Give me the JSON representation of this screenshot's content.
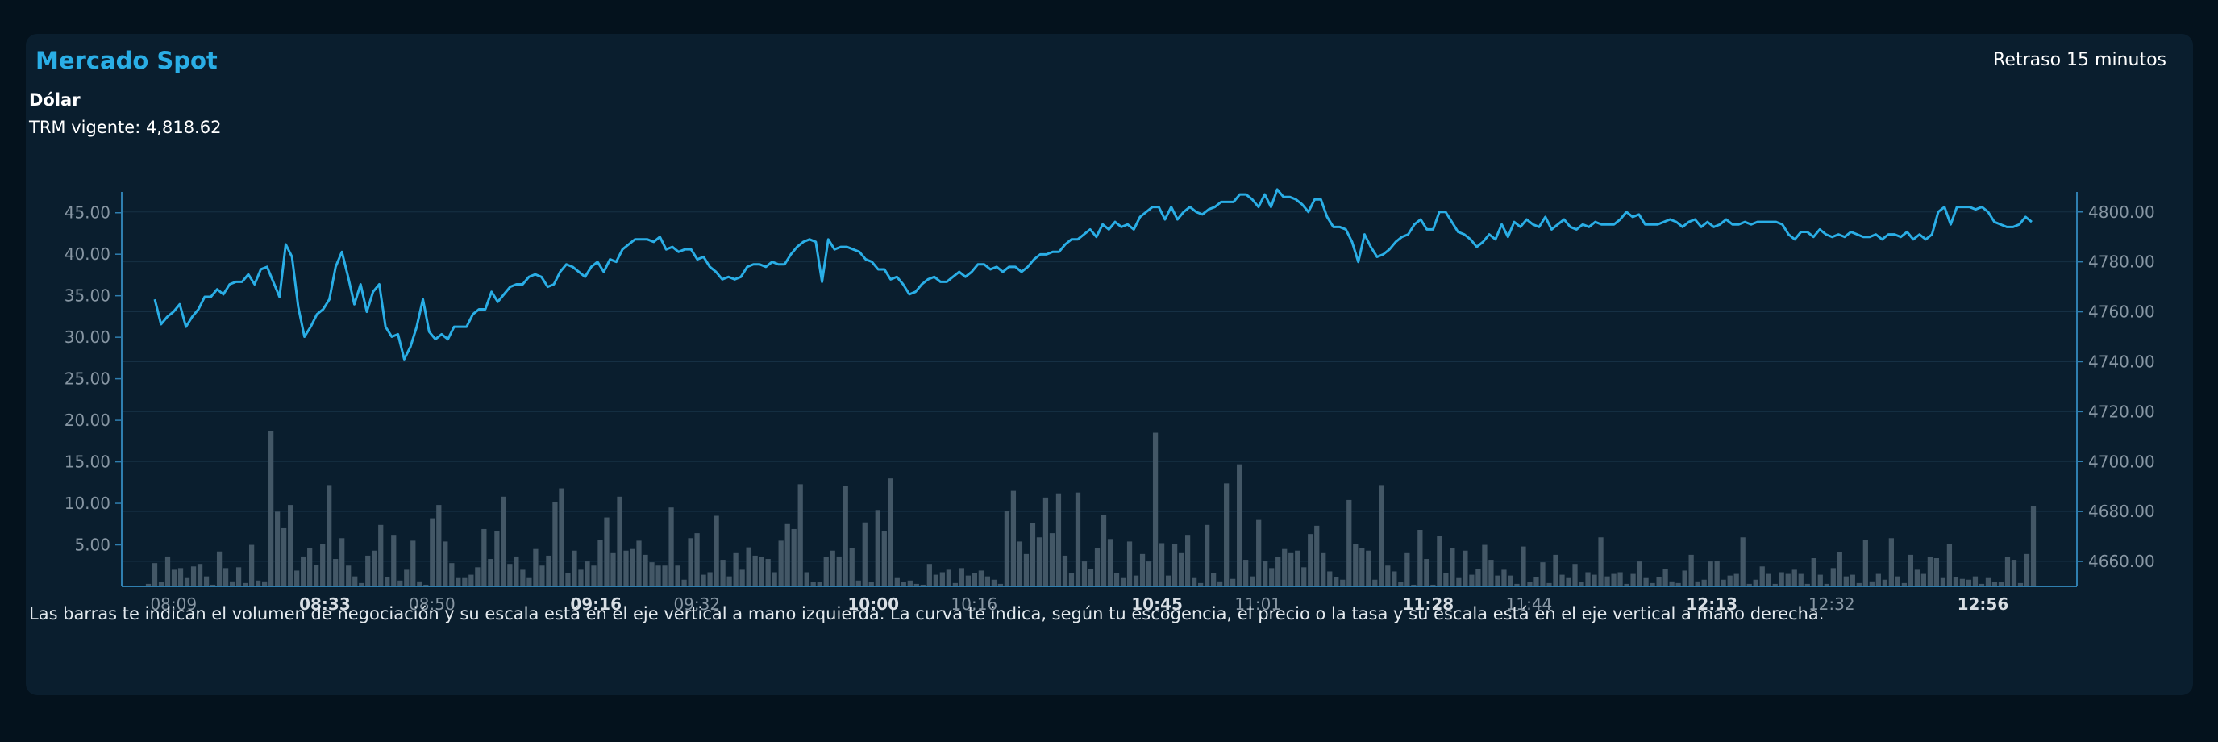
{
  "header": {
    "title": "Mercado Spot",
    "delay": "Retraso 15 minutos",
    "subtitle": "Dólar",
    "trm_label": "TRM vigente: 4,818.62"
  },
  "footer_note": "Las barras te indican el volumen de negociación y su escala está en el eje vertical a mano izquierda. La curva te indica, según tu escogencia, el precio o la tasa y su escala está en el eje vertical a mano derecha.",
  "colors": {
    "line": "#2aaee6",
    "bar": "#435766",
    "axis": "#2f7fb0",
    "grid": "#163044",
    "tick_text": "#8796a3",
    "time_bold": "#d8dee4"
  },
  "chart_data": {
    "type": "bar+line",
    "title": "Mercado Spot",
    "grid": true,
    "volume_axis": {
      "position": "left",
      "range": [
        0,
        47.5
      ],
      "ticks": [
        5,
        10,
        15,
        20,
        25,
        30,
        35,
        40,
        45
      ],
      "tick_labels": [
        "5.00",
        "10.00",
        "15.00",
        "20.00",
        "25.00",
        "30.00",
        "35.00",
        "40.00",
        "45.00"
      ]
    },
    "price_axis": {
      "position": "right",
      "range": [
        4650,
        4808
      ],
      "ticks": [
        4660,
        4680,
        4700,
        4720,
        4740,
        4760,
        4780,
        4800
      ],
      "tick_labels": [
        "4660.00",
        "4680.00",
        "4700.00",
        "4720.00",
        "4740.00",
        "4760.00",
        "4780.00",
        "4800.00"
      ]
    },
    "time_axis": {
      "range_minutes": [
        "08:05",
        "13:04"
      ],
      "ticks": [
        {
          "label": "08:09",
          "bold": false
        },
        {
          "label": "08:33",
          "bold": true
        },
        {
          "label": "08:50",
          "bold": false
        },
        {
          "label": "09:16",
          "bold": true
        },
        {
          "label": "09:32",
          "bold": false
        },
        {
          "label": "10:00",
          "bold": true
        },
        {
          "label": "10:16",
          "bold": false
        },
        {
          "label": "10:45",
          "bold": true
        },
        {
          "label": "11:01",
          "bold": false
        },
        {
          "label": "11:28",
          "bold": true
        },
        {
          "label": "11:44",
          "bold": false
        },
        {
          "label": "12:13",
          "bold": true
        },
        {
          "label": "12:32",
          "bold": false
        },
        {
          "label": "12:56",
          "bold": true
        }
      ]
    },
    "volume_series": {
      "name": "",
      "values": [
        0.3,
        2.8,
        0.5,
        3.6,
        2.0,
        2.2,
        1.0,
        2.4,
        2.7,
        1.2,
        0.2,
        4.2,
        2.2,
        0.6,
        2.3,
        0.4,
        5.0,
        0.7,
        0.6,
        18.7,
        9.0,
        7.0,
        9.8,
        1.9,
        3.6,
        4.6,
        2.6,
        5.1,
        12.2,
        3.3,
        5.8,
        2.5,
        1.2,
        0.4,
        3.7,
        4.3,
        7.4,
        1.1,
        6.2,
        0.7,
        2.0,
        5.5,
        0.6,
        0.2,
        8.2,
        9.8,
        5.4,
        2.8,
        1.0,
        1.0,
        1.4,
        2.3,
        6.9,
        3.3,
        6.7,
        10.8,
        2.7,
        3.6,
        2.0,
        1.0,
        4.5,
        2.5,
        3.7,
        10.2,
        11.8,
        1.6,
        4.3,
        2.0,
        3.0,
        2.5,
        5.6,
        8.3,
        4.0,
        10.8,
        4.3,
        4.5,
        5.5,
        3.8,
        2.9,
        2.5,
        2.5,
        9.5,
        2.5,
        0.8,
        5.8,
        6.4,
        1.4,
        1.7,
        8.5,
        3.2,
        1.2,
        4.0,
        2.0,
        4.7,
        3.7,
        3.5,
        3.3,
        1.7,
        5.5,
        7.5,
        6.9,
        12.3,
        1.7,
        0.5,
        0.5,
        3.5,
        4.3,
        3.6,
        12.1,
        4.6,
        0.7,
        7.7,
        0.5,
        9.2,
        6.7,
        13.0,
        1.0,
        0.5,
        0.7,
        0.3,
        0.2,
        2.7,
        1.4,
        1.7,
        2.0,
        0.4,
        2.2,
        1.3,
        1.6,
        1.9,
        1.2,
        0.8,
        0.3,
        9.1,
        11.5,
        5.4,
        3.9,
        7.6,
        5.9,
        10.7,
        6.4,
        11.2,
        3.7,
        1.6,
        11.3,
        3.0,
        2.1,
        4.6,
        8.6,
        5.7,
        1.6,
        1.0,
        5.4,
        1.3,
        3.9,
        3.0,
        18.5,
        5.2,
        1.3,
        5.1,
        4.0,
        6.2,
        1.0,
        0.4,
        7.4,
        1.6,
        0.6,
        12.4,
        0.9,
        14.7,
        3.2,
        1.2,
        8.0,
        3.1,
        2.2,
        3.5,
        4.5,
        4.0,
        4.3,
        2.3,
        6.3,
        7.3,
        4.0,
        1.8,
        1.1,
        0.8,
        10.4,
        5.1,
        4.6,
        4.3,
        0.8,
        12.2,
        2.5,
        1.8,
        0.5,
        4.0,
        0.2,
        6.8,
        3.3,
        0.2,
        6.1,
        1.6,
        4.6,
        1.0,
        4.3,
        1.4,
        2.1,
        5.0,
        3.2,
        1.3,
        2.0,
        1.3,
        0.3,
        4.8,
        0.5,
        1.1,
        2.9,
        0.4,
        3.8,
        1.4,
        1.0,
        2.7,
        0.5,
        1.7,
        1.4,
        5.9,
        1.2,
        1.5,
        1.7,
        0.3,
        1.5,
        3.0,
        1.0,
        0.4,
        1.1,
        2.1,
        0.6,
        0.4,
        1.9,
        3.8,
        0.6,
        0.8,
        3.0,
        3.1,
        0.8,
        1.3,
        1.5,
        5.9,
        0.3,
        0.8,
        2.4,
        1.5,
        0.3,
        1.7,
        1.5,
        2.0,
        1.5,
        0.3,
        3.4,
        1.4,
        0.3,
        2.2,
        4.1,
        1.2,
        1.4,
        0.4,
        5.6,
        0.6,
        1.5,
        0.8,
        5.8,
        1.2,
        0.4,
        3.8,
        2.0,
        1.5,
        3.5,
        3.4,
        1.0,
        5.1,
        1.1,
        0.9,
        0.8,
        1.2,
        0.3,
        1.0,
        0.5,
        0.5,
        3.5,
        3.2,
        0.4,
        3.9,
        9.7
      ]
    },
    "price_series": {
      "name": "",
      "values": [
        4765,
        4755,
        4758,
        4760,
        4763,
        4754,
        4758,
        4761,
        4766,
        4766,
        4769,
        4767,
        4771,
        4772,
        4772,
        4775,
        4771,
        4777,
        4778,
        4772,
        4766,
        4787,
        4782,
        4762,
        4750,
        4754,
        4759,
        4761,
        4765,
        4778,
        4784,
        4774,
        4763,
        4771,
        4760,
        4768,
        4771,
        4754,
        4750,
        4751,
        4741,
        4746,
        4754,
        4765,
        4752,
        4749,
        4751,
        4749,
        4754,
        4754,
        4754,
        4759,
        4761,
        4761,
        4768,
        4764,
        4767,
        4770,
        4771,
        4771,
        4774,
        4775,
        4774,
        4770,
        4771,
        4776,
        4779,
        4778,
        4776,
        4774,
        4778,
        4780,
        4776,
        4781,
        4780,
        4785,
        4787,
        4789,
        4789,
        4789,
        4788,
        4790,
        4785,
        4786,
        4784,
        4785,
        4785,
        4781,
        4782,
        4778,
        4776,
        4773,
        4774,
        4773,
        4774,
        4778,
        4779,
        4779,
        4778,
        4780,
        4779,
        4779,
        4783,
        4786,
        4788,
        4789,
        4788,
        4772,
        4789,
        4785,
        4786,
        4786,
        4785,
        4784,
        4781,
        4780,
        4777,
        4777,
        4773,
        4774,
        4771,
        4767,
        4768,
        4771,
        4773,
        4774,
        4772,
        4772,
        4774,
        4776,
        4774,
        4776,
        4779,
        4779,
        4777,
        4778,
        4776,
        4778,
        4778,
        4776,
        4778,
        4781,
        4783,
        4783,
        4784,
        4784,
        4787,
        4789,
        4789,
        4791,
        4793,
        4790,
        4795,
        4793,
        4796,
        4794,
        4795,
        4793,
        4798,
        4800,
        4802,
        4802,
        4797,
        4802,
        4797,
        4800,
        4802,
        4800,
        4799,
        4801,
        4802,
        4804,
        4804,
        4804,
        4807,
        4807,
        4805,
        4802,
        4807,
        4802,
        4809,
        4806,
        4806,
        4805,
        4803,
        4800,
        4805,
        4805,
        4798,
        4794,
        4794,
        4793,
        4788,
        4780,
        4791,
        4786,
        4782,
        4783,
        4785,
        4788,
        4790,
        4791,
        4795,
        4797,
        4793,
        4793,
        4800,
        4800,
        4796,
        4792,
        4791,
        4789,
        4786,
        4788,
        4791,
        4789,
        4795,
        4790,
        4796,
        4794,
        4797,
        4795,
        4794,
        4798,
        4793,
        4795,
        4797,
        4794,
        4793,
        4795,
        4794,
        4796,
        4795,
        4795,
        4795,
        4797,
        4800,
        4798,
        4799,
        4795,
        4795,
        4795,
        4796,
        4797,
        4796,
        4794,
        4796,
        4797,
        4794,
        4796,
        4794,
        4795,
        4797,
        4795,
        4795,
        4796,
        4795,
        4796,
        4796,
        4796,
        4796,
        4795,
        4791,
        4789,
        4792,
        4792,
        4790,
        4793,
        4791,
        4790,
        4791,
        4790,
        4792,
        4791,
        4790,
        4790,
        4791,
        4789,
        4791,
        4791,
        4790,
        4792,
        4789,
        4791,
        4789,
        4791,
        4800,
        4802,
        4795,
        4802,
        4802,
        4802,
        4801,
        4802,
        4800,
        4796,
        4795,
        4794,
        4794,
        4795,
        4798,
        4796
      ]
    }
  }
}
